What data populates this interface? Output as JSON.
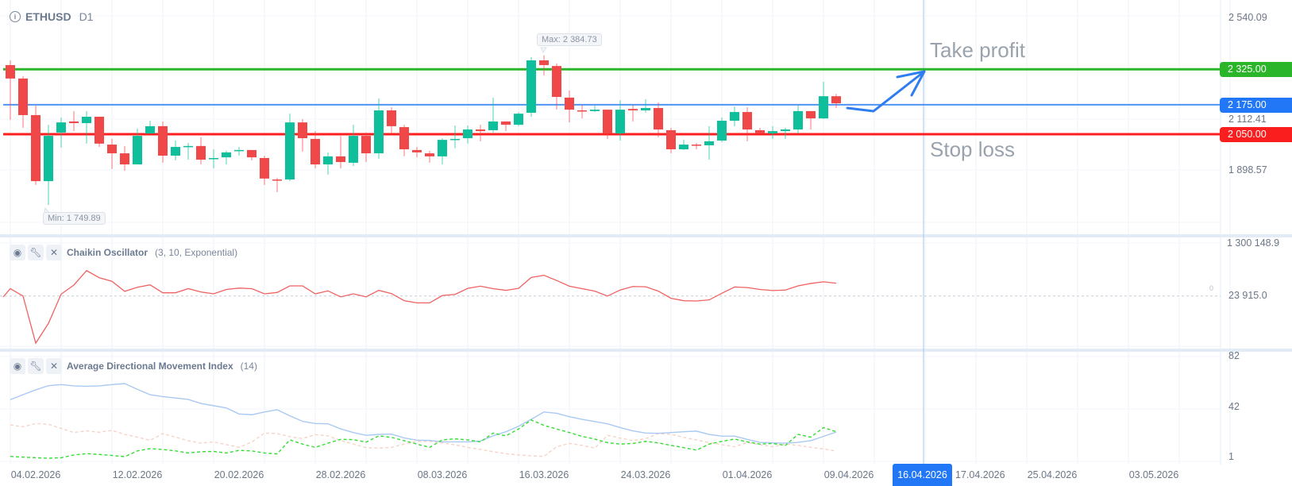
{
  "header": {
    "info_icon": "info-icon",
    "symbol": "ETHUSD",
    "timeframe": "D1"
  },
  "annotations": {
    "take_profit": "Take profit",
    "stop_loss": "Stop loss",
    "max_label": "Max: 2 384.73",
    "min_label": "Min: 1 749.89"
  },
  "price_axis": {
    "top": "2 540.09",
    "take_profit": "2 325.00",
    "entry": "2 175.00",
    "mid": "2 112.41",
    "stop_loss": "2 050.00",
    "low": "1 898.57"
  },
  "chaikin_axis": {
    "top": "1 300 148.9",
    "value": "23 915.0",
    "zero": "0"
  },
  "adx_axis": {
    "top": "82",
    "mid": "42",
    "bottom": "1"
  },
  "indicators": {
    "chaikin": {
      "title": "Chaikin Oscillator",
      "params": "(3, 10, Exponential)"
    },
    "adx": {
      "title": "Average Directional Movement Index",
      "params": "(14)"
    },
    "buttons": {
      "eye": "eye-icon",
      "wrench": "wrench-icon",
      "close": "close-icon"
    }
  },
  "crosshair": {
    "date": "16.04.2026"
  },
  "colors": {
    "up": "#0dbf9a",
    "down": "#f04848",
    "take_profit": "#2ab52a",
    "entry": "#4f94f5",
    "stop_loss": "#ff1f1f",
    "entry_box": "#2177f5",
    "chaikin": "#f06262",
    "adx": "#a9c9f2",
    "plus_di": "#33dd33",
    "minus_di": "#f5d3c6",
    "drawing": "#2f7df0"
  },
  "chart_data": [
    {
      "type": "candlestick",
      "title": "ETHUSD D1",
      "x_ticks": [
        {
          "label": "04.02.2026",
          "day": 2
        },
        {
          "label": "12.02.2026",
          "day": 10
        },
        {
          "label": "20.02.2026",
          "day": 18
        },
        {
          "label": "28.02.2026",
          "day": 26
        },
        {
          "label": "08.03.2026",
          "day": 34
        },
        {
          "label": "16.03.2026",
          "day": 42
        },
        {
          "label": "24.03.2026",
          "day": 50
        },
        {
          "label": "01.04.2026",
          "day": 58
        },
        {
          "label": "09.04.2026",
          "day": 66
        },
        {
          "label": "17.04.2026",
          "day": 74
        },
        {
          "label": "25.04.2026",
          "day": 82
        },
        {
          "label": "03.05.2026",
          "day": 90
        }
      ],
      "ohlc_fields": [
        "open",
        "high",
        "low",
        "close"
      ],
      "candles": [
        [
          2343,
          2363,
          2111,
          2286
        ],
        [
          2286,
          2296,
          2077,
          2131
        ],
        [
          2131,
          2171,
          1835,
          1851
        ],
        [
          1851,
          2090,
          1749.89,
          2043
        ],
        [
          2057,
          2121,
          1993,
          2100
        ],
        [
          2104,
          2148,
          2063,
          2097
        ],
        [
          2097,
          2148,
          2010,
          2124
        ],
        [
          2124,
          2124,
          1996,
          2010
        ],
        [
          2006,
          2030,
          1902,
          1969
        ],
        [
          1969,
          2000,
          1895,
          1922
        ],
        [
          1922,
          2074,
          1922,
          2043
        ],
        [
          2053,
          2107,
          2053,
          2084
        ],
        [
          2084,
          2104,
          1929,
          1959
        ],
        [
          1959,
          2023,
          1939,
          1996
        ],
        [
          1996,
          2013,
          1942,
          2000
        ],
        [
          2000,
          2037,
          1922,
          1942
        ],
        [
          1946,
          1986,
          1905,
          1949
        ],
        [
          1952,
          1980,
          1922,
          1973
        ],
        [
          1980,
          1996,
          1959,
          1983
        ],
        [
          1983,
          1983,
          1939,
          1952
        ],
        [
          1949,
          1959,
          1835,
          1862
        ],
        [
          1858,
          1865,
          1804,
          1855
        ],
        [
          1858,
          2137,
          1851,
          2100
        ],
        [
          2100,
          2114,
          1976,
          2033
        ],
        [
          2030,
          2063,
          1905,
          1922
        ],
        [
          1922,
          1973,
          1879,
          1956
        ],
        [
          1956,
          2043,
          1905,
          1932
        ],
        [
          1929,
          2090,
          1915,
          2043
        ],
        [
          2043,
          2057,
          1932,
          1969
        ],
        [
          1969,
          2201,
          1946,
          2151
        ],
        [
          2151,
          2164,
          2053,
          2084
        ],
        [
          2080,
          2090,
          1956,
          1986
        ],
        [
          1983,
          1996,
          1952,
          1973
        ],
        [
          1969,
          1980,
          1929,
          1956
        ],
        [
          1956,
          2033,
          1922,
          2026
        ],
        [
          2026,
          2087,
          1990,
          2030
        ],
        [
          2033,
          2087,
          2010,
          2070
        ],
        [
          2070,
          2090,
          2020,
          2063
        ],
        [
          2067,
          2205,
          2057,
          2104
        ],
        [
          2104,
          2104,
          2063,
          2090
        ],
        [
          2090,
          2144,
          2084,
          2137
        ],
        [
          2141,
          2377,
          2124,
          2363
        ],
        [
          2363,
          2384.73,
          2299,
          2343
        ],
        [
          2339,
          2350,
          2154,
          2208
        ],
        [
          2205,
          2235,
          2100,
          2154
        ],
        [
          2151,
          2174,
          2117,
          2148
        ],
        [
          2148,
          2171,
          2144,
          2154
        ],
        [
          2154,
          2154,
          2030,
          2053
        ],
        [
          2053,
          2194,
          2023,
          2154
        ],
        [
          2157,
          2174,
          2104,
          2151
        ],
        [
          2151,
          2198,
          2141,
          2161
        ],
        [
          2161,
          2184,
          2037,
          2070
        ],
        [
          2067,
          2077,
          1969,
          1986
        ],
        [
          1986,
          2026,
          1983,
          2006
        ],
        [
          2006,
          2013,
          1986,
          2003
        ],
        [
          2003,
          2084,
          1942,
          2020
        ],
        [
          2023,
          2121,
          2016,
          2107
        ],
        [
          2107,
          2168,
          2084,
          2144
        ],
        [
          2144,
          2164,
          2020,
          2070
        ],
        [
          2067,
          2077,
          2053,
          2053
        ],
        [
          2053,
          2084,
          2030,
          2063
        ],
        [
          2063,
          2077,
          2030,
          2070
        ],
        [
          2070,
          2174,
          2053,
          2148
        ],
        [
          2148,
          2148,
          2070,
          2117
        ],
        [
          2117,
          2272,
          2114,
          2211
        ],
        [
          2211,
          2221,
          2161,
          2181
        ]
      ],
      "levels": [
        {
          "name": "take_profit",
          "value": 2325
        },
        {
          "name": "entry",
          "value": 2175
        },
        {
          "name": "stop_loss",
          "value": 2050
        }
      ],
      "max": 2384.73,
      "min": 1749.89,
      "ylim": [
        1700,
        2540.09
      ]
    },
    {
      "type": "line",
      "title": "Chaikin Oscillator (3, 10, Exponential)",
      "series": [
        {
          "name": "Chaikin Oscillator",
          "values": [
            181000,
            0,
            -1151000,
            -669000,
            47000,
            268000,
            622000,
            448000,
            361000,
            114000,
            214000,
            274000,
            80000,
            80000,
            181000,
            100000,
            54000,
            161000,
            194000,
            181000,
            54000,
            87000,
            248000,
            248000,
            54000,
            127000,
            -20000,
            54000,
            -20000,
            140000,
            60000,
            -114000,
            -167000,
            -167000,
            13000,
            40000,
            187000,
            241000,
            181000,
            140000,
            187000,
            455000,
            508000,
            381000,
            241000,
            181000,
            120000,
            0,
            147000,
            234000,
            227000,
            120000,
            -54000,
            -114000,
            -120000,
            -94000,
            67000,
            221000,
            207000,
            161000,
            134000,
            147000,
            248000,
            308000,
            348000,
            314000
          ]
        }
      ]
    },
    {
      "type": "line",
      "title": "Average Directional Movement Index (14)",
      "ylim": [
        1,
        82
      ],
      "series": [
        {
          "name": "ADX",
          "values": [
            49.1,
            52.9,
            56.6,
            59.8,
            60.6,
            59.6,
            59.3,
            59.6,
            60.6,
            61.4,
            57.0,
            52.9,
            51.4,
            50.4,
            49.3,
            46.2,
            44.5,
            42.8,
            38.2,
            37.6,
            39.7,
            41.4,
            36.8,
            32.6,
            30.9,
            30.7,
            26.8,
            24.0,
            21.9,
            22.6,
            22.8,
            19.9,
            18.2,
            18.0,
            16.9,
            16.9,
            16.9,
            17.5,
            21.5,
            24.6,
            28.8,
            34.1,
            39.7,
            38.7,
            36.1,
            34.1,
            32.4,
            30.7,
            27.8,
            25.3,
            23.6,
            23.4,
            24.0,
            24.6,
            25.1,
            22.6,
            21.3,
            21.3,
            18.8,
            16.5,
            16.1,
            15.9,
            16.5,
            17.8,
            21.1,
            24.4
          ]
        },
        {
          "name": "+DI",
          "values": [
            5.8,
            5.2,
            4.8,
            4.4,
            4.8,
            6.9,
            7.9,
            7.3,
            6.5,
            5.6,
            10.0,
            11.7,
            11.1,
            10.0,
            8.4,
            9.4,
            9.6,
            8.4,
            10.4,
            10.0,
            8.4,
            7.7,
            18.4,
            15.2,
            12.7,
            15.9,
            18.8,
            18.6,
            16.7,
            21.5,
            20.3,
            17.8,
            15.2,
            12.7,
            18.4,
            19.2,
            18.4,
            16.9,
            23.6,
            21.5,
            26.7,
            33.6,
            29.5,
            26.7,
            24.0,
            21.1,
            19.0,
            16.3,
            15.2,
            15.7,
            17.3,
            16.1,
            14.2,
            12.5,
            10.6,
            15.2,
            17.3,
            19.0,
            16.9,
            15.2,
            15.7,
            14.2,
            22.6,
            20.5,
            27.8,
            24.7
          ]
        },
        {
          "name": "-DI",
          "values": [
            29.9,
            28.4,
            30.9,
            30.3,
            27.2,
            24.0,
            25.3,
            24.2,
            25.7,
            22.6,
            20.5,
            18.0,
            23.2,
            20.5,
            17.8,
            15.9,
            16.9,
            14.8,
            12.7,
            16.7,
            23.6,
            23.2,
            20.9,
            19.4,
            22.4,
            21.5,
            18.0,
            15.2,
            12.5,
            12.1,
            12.7,
            15.2,
            17.3,
            17.3,
            16.1,
            14.6,
            12.7,
            11.1,
            9.4,
            7.9,
            6.9,
            6.3,
            5.8,
            13.2,
            15.7,
            14.2,
            12.1,
            21.9,
            19.8,
            17.8,
            19.4,
            23.2,
            22.6,
            20.3,
            18.4,
            16.3,
            14.8,
            13.2,
            16.3,
            14.8,
            13.2,
            15.2,
            14.2,
            12.7,
            11.5,
            9.9
          ]
        }
      ]
    }
  ]
}
